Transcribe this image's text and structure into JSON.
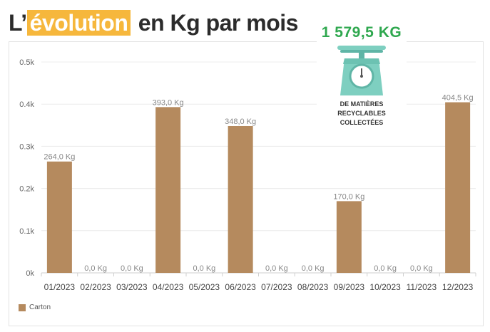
{
  "title": {
    "prefix": "L’",
    "highlight": "évolution",
    "rest": " en Kg par mois"
  },
  "badge": {
    "total": "1 579,5 KG",
    "caption_line1": "DE MATIÈRES RECYCLABLES",
    "caption_line2": "COLLECTÉES",
    "icon": "scale-icon",
    "color": "#2fa84f"
  },
  "colors": {
    "bar": "#b58a5e",
    "highlight": "#f6b73c",
    "scale_body": "#7ecfc0"
  },
  "chart_data": {
    "type": "bar",
    "categories": [
      "01/2023",
      "02/2023",
      "03/2023",
      "04/2023",
      "05/2023",
      "06/2023",
      "07/2023",
      "08/2023",
      "09/2023",
      "10/2023",
      "11/2023",
      "12/2023"
    ],
    "series": [
      {
        "name": "Carton",
        "values": [
          264.0,
          0,
          0,
          393.0,
          0,
          348.0,
          0,
          0,
          170.0,
          0,
          0,
          404.5
        ]
      }
    ],
    "data_labels": [
      "264,0 Kg",
      "0,0 Kg",
      "0,0 Kg",
      "393,0 Kg",
      "0,0 Kg",
      "348,0 Kg",
      "0,0 Kg",
      "0,0 Kg",
      "170,0 Kg",
      "0,0 Kg",
      "0,0 Kg",
      "404,5 Kg"
    ],
    "ylim": [
      0,
      500
    ],
    "yticks": [
      0,
      100,
      200,
      300,
      400,
      500
    ],
    "ytick_labels": [
      "0k",
      "0.1k",
      "0.2k",
      "0.3k",
      "0.4k",
      "0.5k"
    ],
    "grid": true,
    "legend_position": "bottom-left"
  }
}
